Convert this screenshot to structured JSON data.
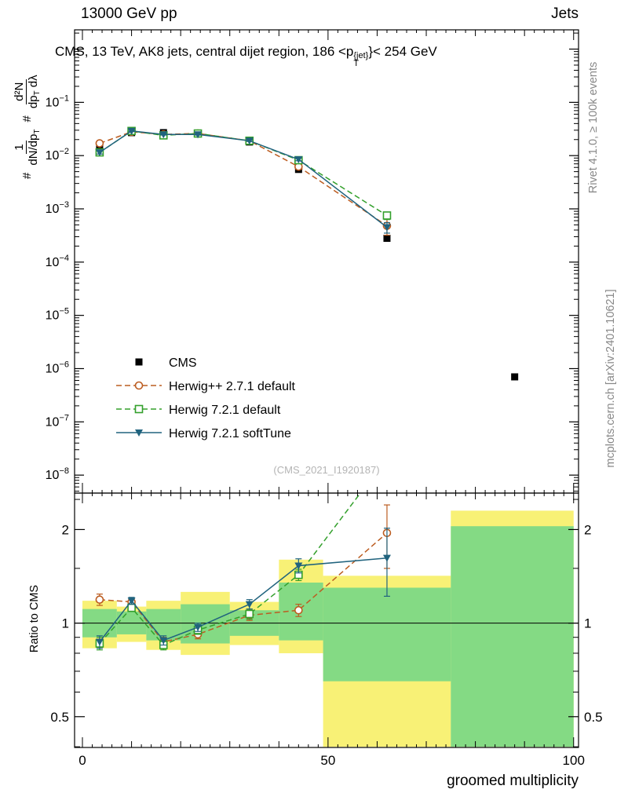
{
  "header": {
    "left": "13000 GeV pp",
    "right": "Jets"
  },
  "title": {
    "pre": "CMS, 13 TeV, AK8 jets, central dijet region, 186 <p",
    "sup": "{jet}",
    "sub": "T",
    "post": "}< 254 GeV"
  },
  "ylabel": {
    "hash1": "#",
    "frac1_num": "1",
    "frac1_den": "dN/dp",
    "frac1_den_sub": "T",
    "hash2": "#",
    "frac2_num": "d²N",
    "frac2_den_a": "dp",
    "frac2_den_a_sub": "T",
    "frac2_den_b": " dλ"
  },
  "ratio_ylabel": "Ratio to CMS",
  "xlabel": "groomed multiplicity",
  "watermark": "(CMS_2021_I1920187)",
  "side_notes": {
    "rivet": "Rivet 4.1.0, ≥ 100k events",
    "mcplots": "mcplots.cern.ch [arXiv:2401.10621]"
  },
  "colors": {
    "cms": "#000000",
    "herwigpp": "#bc5d21",
    "h7def": "#33a02c",
    "h7soft": "#20637e",
    "band_yellow": "#f8f176",
    "band_green": "#84da84",
    "frame": "#000000",
    "watermark": "#b4b4b4",
    "side_text": "#888888"
  },
  "legend": [
    {
      "label": "CMS",
      "marker": "square-filled",
      "line": "none",
      "color_key": "cms"
    },
    {
      "label": "Herwig++ 2.7.1 default",
      "marker": "circle-open",
      "line": "dashed",
      "color_key": "herwigpp"
    },
    {
      "label": "Herwig 7.2.1 default",
      "marker": "square-open",
      "line": "dashed",
      "color_key": "h7def"
    },
    {
      "label": "Herwig 7.2.1 softTune",
      "marker": "triangle-down-filled",
      "line": "solid",
      "color_key": "h7soft"
    }
  ],
  "chart_data": [
    {
      "type": "line",
      "panel": "main",
      "title": "CMS, 13 TeV, AK8 jets, central dijet region, 186 < pT{jet} < 254 GeV",
      "xlabel": "groomed multiplicity",
      "ylabel": "# 1/(dN/dpT) # d2N/(dpT dlambda)",
      "yscale": "log",
      "xlim": [
        -1.6,
        101
      ],
      "ylim": [
        4.6e-09,
        2.3
      ],
      "yticks_exponents": [
        -1,
        -2,
        -3,
        -4,
        -5,
        -6,
        -7,
        -8
      ],
      "xticks": [
        0,
        50,
        100
      ],
      "grid": false,
      "legend_position": "center-left",
      "series": [
        {
          "name": "CMS",
          "color_key": "cms",
          "marker": "square-filled",
          "line": "none",
          "x": [
            3.5,
            10,
            16.5,
            23.5,
            34,
            44,
            62,
            88
          ],
          "y": [
            0.015,
            0.027,
            0.027,
            0.026,
            0.018,
            0.0055,
            0.00028,
            7e-07
          ]
        },
        {
          "name": "Herwig++ 2.7.1 default",
          "color_key": "herwigpp",
          "marker": "circle-open",
          "line": "dashed",
          "x": [
            3.5,
            10,
            16.5,
            23.5,
            34,
            44,
            62
          ],
          "y": [
            0.017,
            0.028,
            0.025,
            0.026,
            0.019,
            0.0062,
            0.00048
          ],
          "yerr": [
            0.0012,
            0.0008,
            0.0008,
            0.0008,
            0.0006,
            0.0005,
            0.00016
          ]
        },
        {
          "name": "Herwig 7.2.1 default",
          "color_key": "h7def",
          "marker": "square-open",
          "line": "dashed",
          "x": [
            3.5,
            10,
            16.5,
            23.5,
            34,
            44,
            62
          ],
          "y": [
            0.0115,
            0.029,
            0.024,
            0.026,
            0.019,
            0.0082,
            0.00075
          ],
          "yerr": [
            0.0008,
            0.0008,
            0.0007,
            0.0007,
            0.0006,
            0.0005,
            0.00012
          ]
        },
        {
          "name": "Herwig 7.2.1 softTune",
          "color_key": "h7soft",
          "marker": "triangle-down-filled",
          "line": "solid",
          "x": [
            3.5,
            10,
            16.5,
            23.5,
            34,
            44,
            62
          ],
          "y": [
            0.0115,
            0.029,
            0.025,
            0.025,
            0.019,
            0.0085,
            0.00045
          ],
          "yerr": [
            0.0008,
            0.0008,
            0.0007,
            0.0007,
            0.0006,
            0.0005,
            0.0001
          ]
        }
      ]
    },
    {
      "type": "ratio",
      "panel": "ratio",
      "ylabel": "Ratio to CMS",
      "yscale": "log",
      "xlim": [
        -1.6,
        101
      ],
      "ylim": [
        0.398,
        2.62
      ],
      "yticks": [
        0.5,
        1,
        2
      ],
      "ytick_labels": [
        "0.5",
        "1",
        "2"
      ],
      "minor_ticks": [
        0.4,
        0.6,
        0.7,
        0.8,
        0.9,
        1.5,
        2.5
      ],
      "reference_line": 1,
      "bands": {
        "yellow": [
          [
            0,
            7,
            0.83,
            1.18
          ],
          [
            7,
            13,
            0.87,
            1.13
          ],
          [
            13,
            20,
            0.82,
            1.18
          ],
          [
            20,
            30,
            0.79,
            1.26
          ],
          [
            30,
            40,
            0.85,
            1.17
          ],
          [
            40,
            49,
            0.8,
            1.6
          ],
          [
            49,
            75,
            0.4,
            1.42
          ],
          [
            75,
            100,
            0.4,
            2.3
          ]
        ],
        "green": [
          [
            0,
            7,
            0.9,
            1.11
          ],
          [
            7,
            13,
            0.92,
            1.09
          ],
          [
            13,
            20,
            0.88,
            1.11
          ],
          [
            20,
            30,
            0.86,
            1.15
          ],
          [
            30,
            40,
            0.91,
            1.1
          ],
          [
            40,
            49,
            0.88,
            1.35
          ],
          [
            49,
            75,
            0.65,
            1.3
          ],
          [
            75,
            100,
            0.4,
            2.05
          ]
        ]
      },
      "series": [
        {
          "name": "Herwig++ 2.7.1 default",
          "color_key": "herwigpp",
          "marker": "circle-open",
          "line": "dashed",
          "x": [
            3.5,
            10,
            16.5,
            23.5,
            34,
            44,
            62
          ],
          "y": [
            1.19,
            1.17,
            0.87,
            0.92,
            1.06,
            1.1,
            1.95
          ],
          "yerr": [
            0.05,
            0.03,
            0.03,
            0.03,
            0.04,
            0.05,
            0.45
          ]
        },
        {
          "name": "Herwig 7.2.1 default",
          "color_key": "h7def",
          "marker": "square-open",
          "line": "dashed",
          "x": [
            3.5,
            10,
            16.5,
            23.5,
            34,
            44,
            62
          ],
          "y": [
            0.86,
            1.12,
            0.85,
            0.95,
            1.07,
            1.43,
            3.4
          ],
          "yerr": [
            0.04,
            0.03,
            0.03,
            0.03,
            0.04,
            0.06,
            0
          ]
        },
        {
          "name": "Herwig 7.2.1 softTune",
          "color_key": "h7soft",
          "marker": "triangle-down-filled",
          "line": "solid",
          "x": [
            3.5,
            10,
            16.5,
            23.5,
            34,
            44,
            62
          ],
          "y": [
            0.87,
            1.18,
            0.88,
            0.97,
            1.15,
            1.53,
            1.62
          ],
          "yerr": [
            0.04,
            0.03,
            0.03,
            0.03,
            0.04,
            0.08,
            0.4
          ]
        }
      ]
    }
  ]
}
